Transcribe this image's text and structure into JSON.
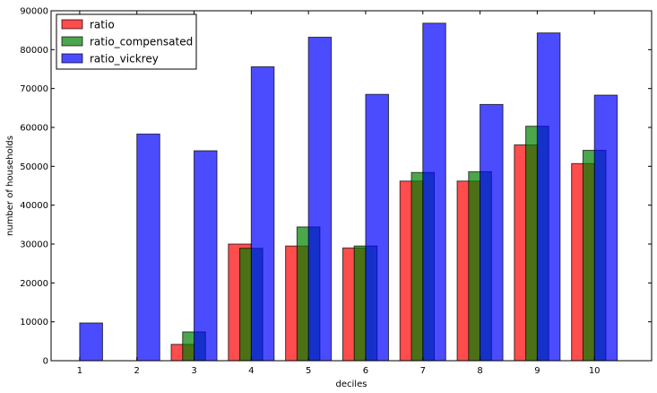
{
  "chart_data": {
    "type": "bar",
    "title": "",
    "xlabel": "deciles",
    "ylabel": "number of households",
    "categories": [
      "1",
      "2",
      "3",
      "4",
      "5",
      "6",
      "7",
      "8",
      "9",
      "10"
    ],
    "ylim": [
      0,
      90000
    ],
    "yticks": [
      0,
      10000,
      20000,
      30000,
      40000,
      50000,
      60000,
      70000,
      80000,
      90000
    ],
    "legend_position": "top-left",
    "grid": false,
    "series": [
      {
        "name": "ratio",
        "color": "#ff0000",
        "values": [
          0,
          0,
          4200,
          30000,
          29500,
          29000,
          46200,
          46200,
          55500,
          50700
        ]
      },
      {
        "name": "ratio_compensated",
        "color": "#008000",
        "values": [
          0,
          0,
          7400,
          28900,
          34400,
          29500,
          48400,
          48600,
          60300,
          54100
        ]
      },
      {
        "name": "ratio_vickrey",
        "color": "#0000ff",
        "values": [
          9700,
          58300,
          54000,
          75600,
          83200,
          68500,
          86800,
          65900,
          84300,
          68300
        ]
      }
    ]
  }
}
